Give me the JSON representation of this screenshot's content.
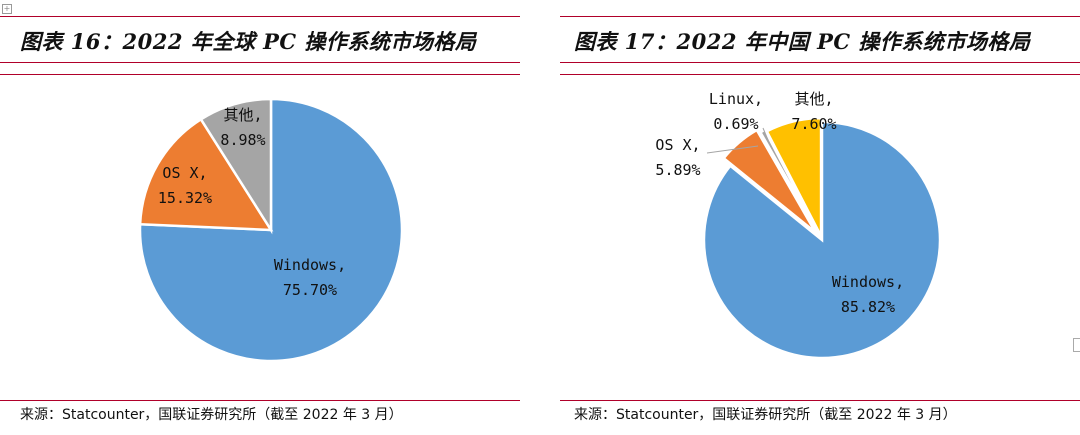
{
  "chart_data": [
    {
      "type": "pie",
      "title": "图表 16：2022 年全球 PC 操作系统市场格局",
      "source": "来源：Statcounter，国联证券研究所（截至 2022 年 3 月）",
      "slices": [
        {
          "name": "Windows",
          "label": "Windows,",
          "value": 75.7,
          "value_label": "75.70%",
          "color": "#5b9bd5"
        },
        {
          "name": "OS X",
          "label": "OS X,",
          "value": 15.32,
          "value_label": "15.32%",
          "color": "#ed7d31"
        },
        {
          "name": "其他",
          "label": "其他,",
          "value": 8.98,
          "value_label": "8.98%",
          "color": "#a5a5a5"
        }
      ]
    },
    {
      "type": "pie",
      "title": "图表 17：2022 年中国 PC 操作系统市场格局",
      "source": "来源：Statcounter，国联证券研究所（截至 2022 年 3 月）",
      "slices": [
        {
          "name": "Windows",
          "label": "Windows,",
          "value": 85.82,
          "value_label": "85.82%",
          "color": "#5b9bd5"
        },
        {
          "name": "OS X",
          "label": "OS X,",
          "value": 5.89,
          "value_label": "5.89%",
          "color": "#ed7d31"
        },
        {
          "name": "Linux",
          "label": "Linux,",
          "value": 0.69,
          "value_label": "0.69%",
          "color": "#a5a5a5"
        },
        {
          "name": "其他",
          "label": "其他,",
          "value": 7.6,
          "value_label": "7.60%",
          "color": "#ffc000"
        }
      ]
    }
  ]
}
